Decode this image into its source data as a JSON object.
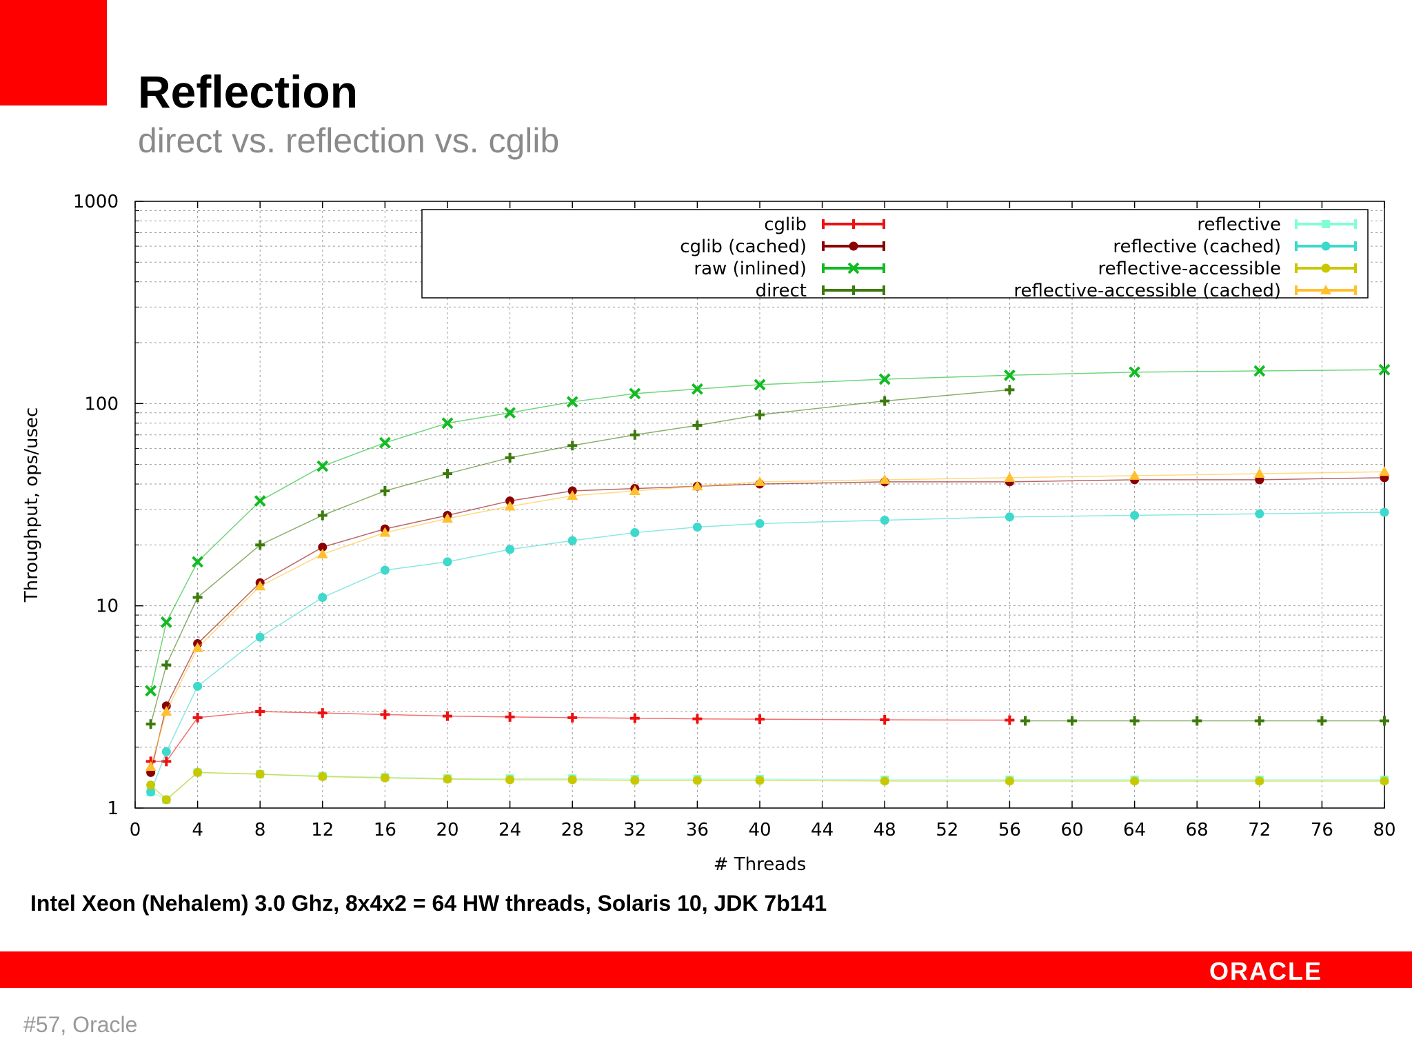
{
  "slide": {
    "title": "Reflection",
    "subtitle": "direct vs. reflection vs. cglib",
    "caption": "Intel Xeon (Nehalem) 3.0 Ghz, 8x4x2 = 64 HW threads, Solaris 10, JDK 7b141",
    "logo": "ORACLE",
    "slide_number": "#57, Oracle"
  },
  "colors": {
    "accent": "#ff0000",
    "cglib": "#ee1111",
    "cglib_cached": "#8b0000",
    "raw_inlined": "#11bb22",
    "direct": "#3d7a0c",
    "reflective": "#80ffd4",
    "reflective_cached": "#3cd9cc",
    "reflective_accessible": "#c8c800",
    "reflective_accessible_cached": "#ffc030"
  },
  "chart_data": {
    "type": "line",
    "xlabel": "# Threads",
    "ylabel": "Throughput, ops/usec",
    "xlim": [
      0,
      80
    ],
    "ylim": [
      1,
      1000
    ],
    "yscale": "log",
    "xticks": [
      0,
      4,
      8,
      12,
      16,
      20,
      24,
      28,
      32,
      36,
      40,
      44,
      48,
      52,
      56,
      60,
      64,
      68,
      72,
      76,
      80
    ],
    "yticks": [
      1,
      10,
      100,
      1000
    ],
    "grid": true,
    "legend_position": "top",
    "x": [
      1,
      2,
      4,
      8,
      12,
      16,
      20,
      24,
      28,
      32,
      36,
      40,
      48,
      56,
      64,
      72,
      80
    ],
    "series": [
      {
        "name": "cglib",
        "color_key": "cglib",
        "marker": "plus",
        "values": [
          1.7,
          1.7,
          2.8,
          3.0,
          2.95,
          2.9,
          2.85,
          2.82,
          2.8,
          2.78,
          2.76,
          2.75,
          2.73,
          2.72,
          null,
          null,
          null
        ]
      },
      {
        "name": "cglib (cached)",
        "color_key": "cglib_cached",
        "marker": "circle",
        "values": [
          1.5,
          3.2,
          6.5,
          13,
          19.5,
          24,
          28,
          33,
          37,
          38,
          39,
          40,
          41,
          41,
          42,
          42,
          43
        ]
      },
      {
        "name": "raw (inlined)",
        "color_key": "raw_inlined",
        "marker": "x",
        "values": [
          3.8,
          8.3,
          16.5,
          33,
          49,
          64,
          80,
          90,
          102,
          112,
          118,
          124,
          132,
          138,
          143,
          145,
          147
        ]
      },
      {
        "name": "direct",
        "color_key": "direct",
        "marker": "plus",
        "values": [
          2.6,
          5.1,
          11,
          20,
          28,
          37,
          45,
          54,
          62,
          70,
          78,
          88,
          103,
          117,
          null,
          null,
          null
        ]
      },
      {
        "name": "reflective",
        "color_key": "reflective",
        "marker": "square",
        "values": [
          1.2,
          1.1,
          1.5,
          1.47,
          1.44,
          1.42,
          1.4,
          1.4,
          1.4,
          1.39,
          1.39,
          1.39,
          1.38,
          1.38,
          1.38,
          1.38,
          1.38
        ]
      },
      {
        "name": "reflective (cached)",
        "color_key": "reflective_cached",
        "marker": "circle",
        "values": [
          1.2,
          1.9,
          4.0,
          7.0,
          11,
          15,
          16.5,
          19,
          21,
          23,
          24.5,
          25.5,
          26.5,
          27.5,
          28,
          28.5,
          29
        ]
      },
      {
        "name": "reflective-accessible",
        "color_key": "reflective_accessible",
        "marker": "circle",
        "values": [
          1.3,
          1.1,
          1.5,
          1.47,
          1.43,
          1.41,
          1.39,
          1.38,
          1.38,
          1.37,
          1.37,
          1.37,
          1.36,
          1.36,
          1.36,
          1.36,
          1.36
        ]
      },
      {
        "name": "reflective-accessible (cached)",
        "color_key": "reflective_accessible_cached",
        "marker": "triangle",
        "values": [
          1.6,
          3.0,
          6.2,
          12.5,
          18,
          23,
          27,
          31,
          35,
          37,
          39,
          41,
          42,
          43,
          44,
          45,
          46
        ]
      }
    ],
    "continuation": {
      "name": "direct",
      "color_key": "direct",
      "x": [
        57,
        60,
        64,
        68,
        72,
        76,
        80
      ],
      "values": [
        2.7,
        2.7,
        2.7,
        2.7,
        2.7,
        2.7,
        2.7
      ]
    }
  }
}
